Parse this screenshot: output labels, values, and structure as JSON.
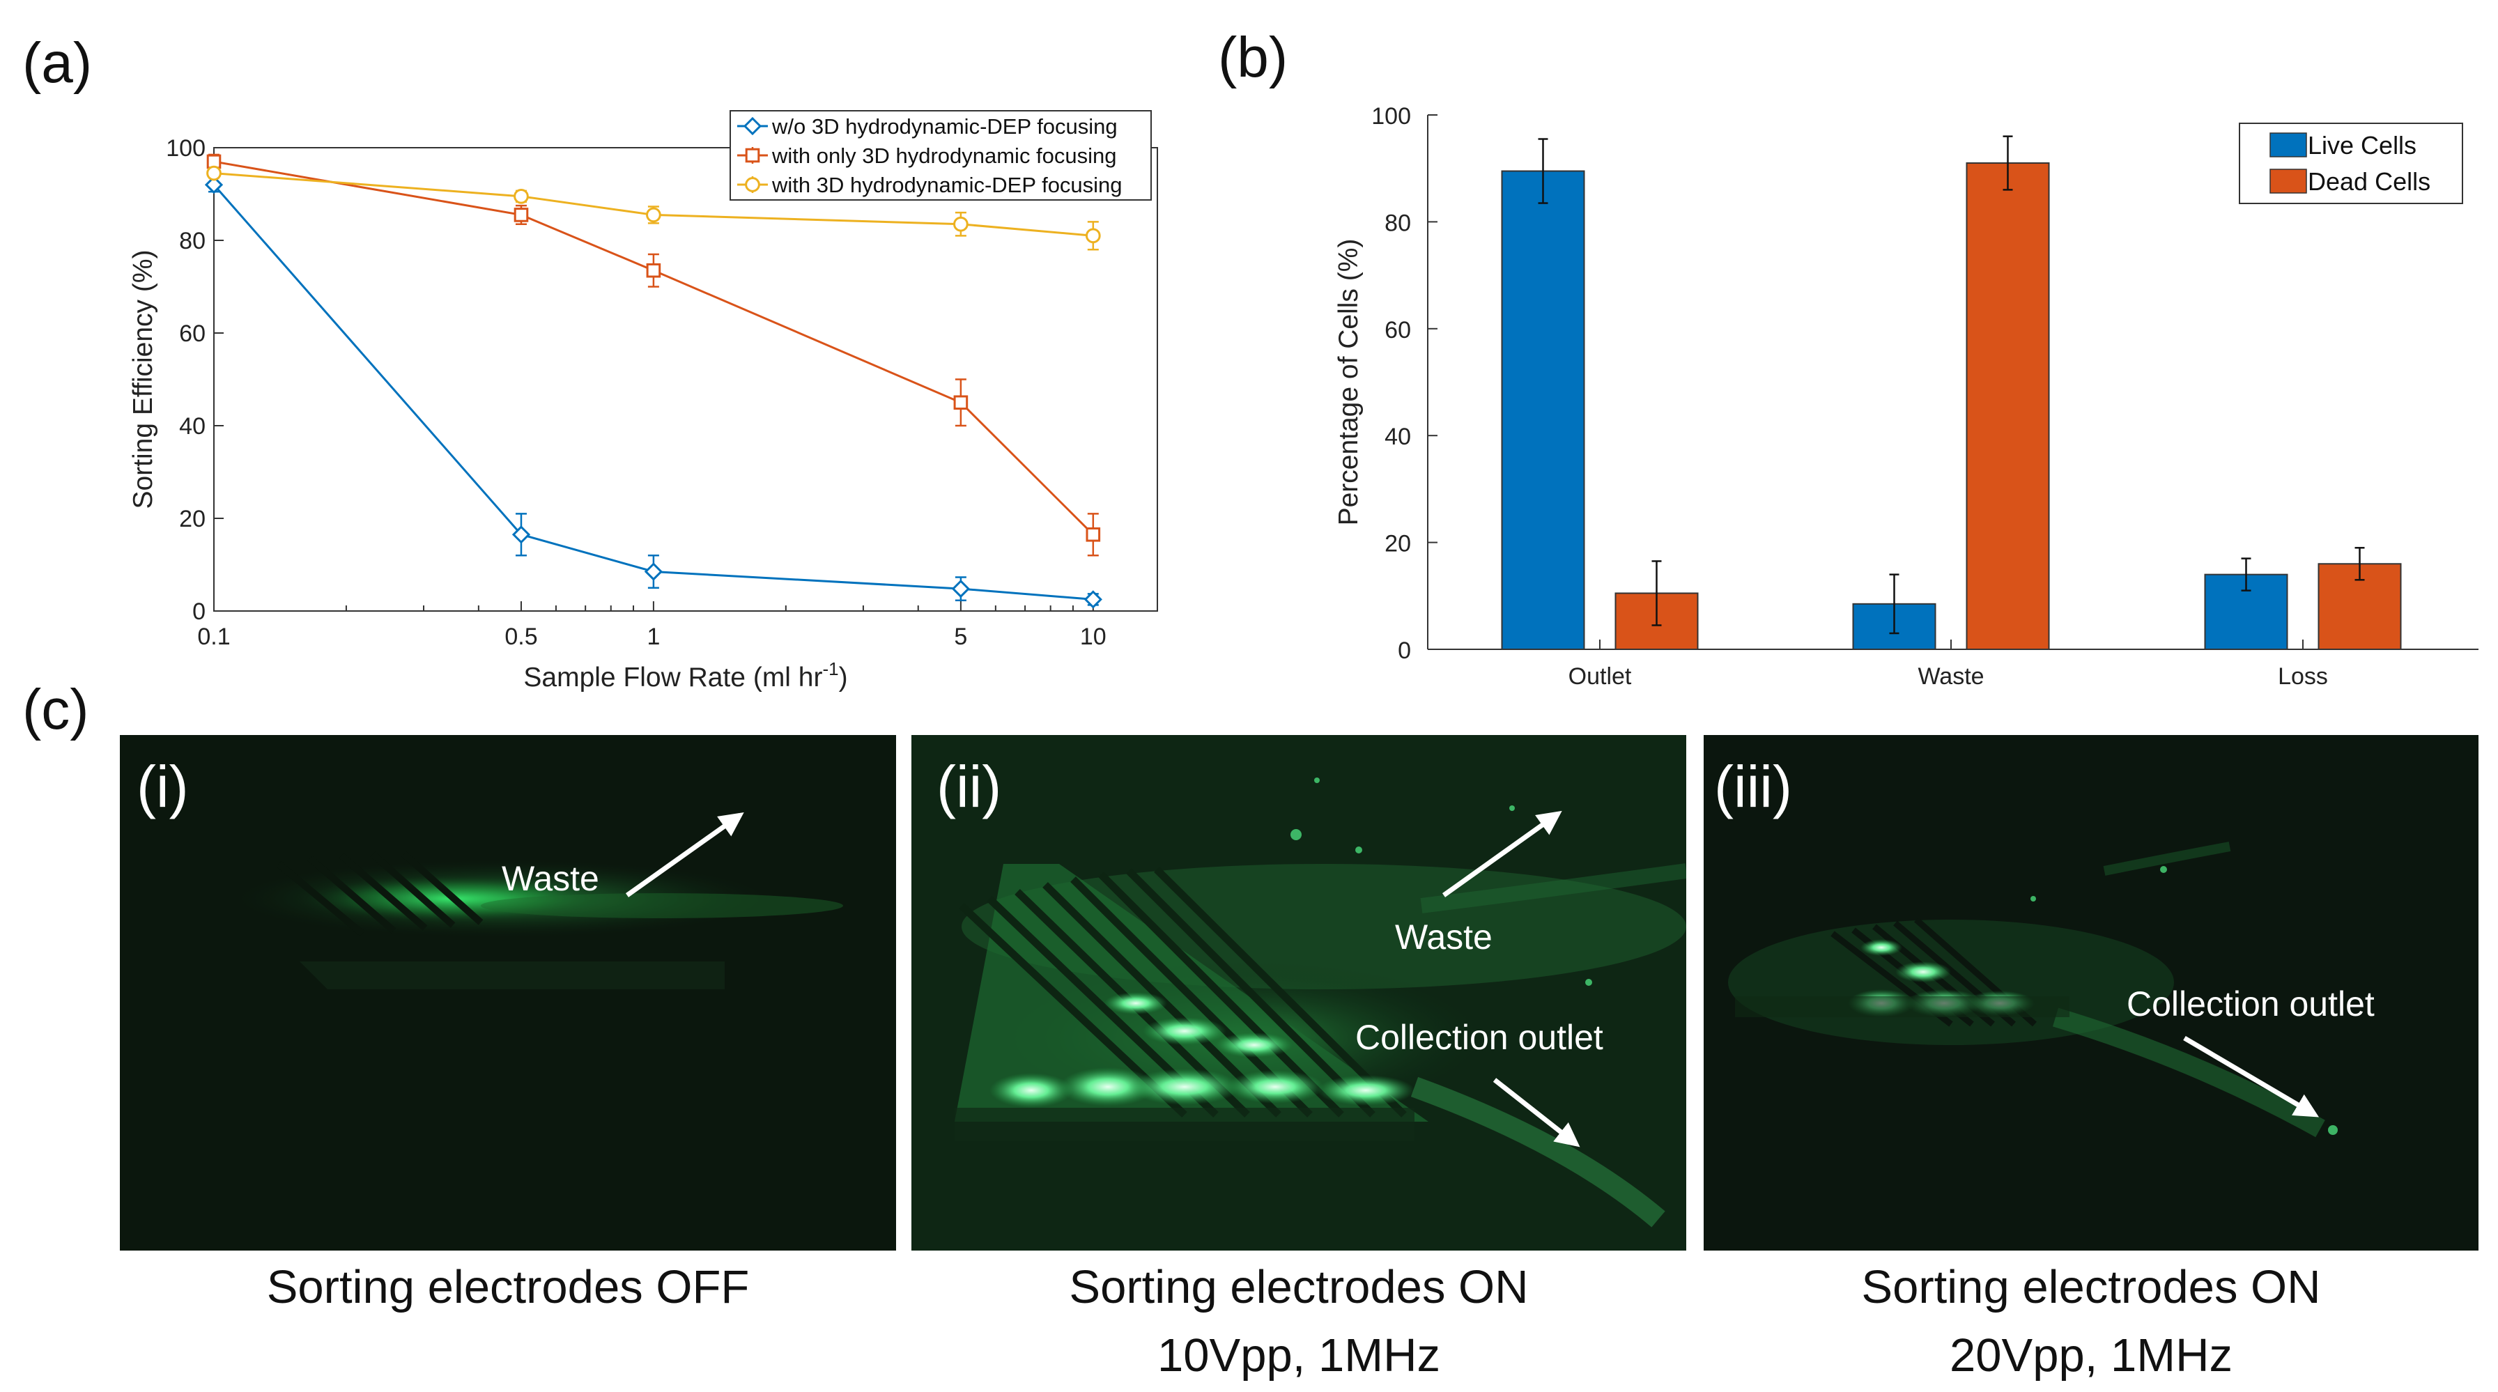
{
  "panels": {
    "a": {
      "label": "(a)"
    },
    "b": {
      "label": "(b)"
    },
    "c": {
      "label": "(c)"
    }
  },
  "chart_data": [
    {
      "id": "a",
      "type": "line",
      "xscale": "log",
      "xlabel": "Sample Flow Rate (ml hr",
      "xlabel_sup": "-1",
      "xlabel_end": ")",
      "ylabel": "Sorting Efficiency (%)",
      "xlim": [
        0.1,
        14
      ],
      "ylim": [
        0,
        100
      ],
      "x": [
        0.1,
        0.5,
        1,
        5,
        10
      ],
      "xticks": [
        "0.1",
        "0.5",
        "1",
        "5",
        "10"
      ],
      "yticks": [
        "0",
        "20",
        "40",
        "60",
        "80",
        "100"
      ],
      "legend_position": "top-right",
      "series": [
        {
          "name": "w/o 3D hydrodynamic-DEP focusing",
          "color": "#0072BD",
          "marker": "diamond",
          "values": [
            92,
            16.5,
            8.5,
            4.8,
            2.5
          ],
          "errors": [
            1.5,
            4.5,
            3.5,
            2.5,
            1.2
          ]
        },
        {
          "name": "with only 3D hydrodynamic focusing",
          "color": "#D95319",
          "marker": "square",
          "values": [
            97,
            85.5,
            73.5,
            45,
            16.5
          ],
          "errors": [
            1.5,
            2,
            3.5,
            5,
            4.5
          ]
        },
        {
          "name": "with 3D hydrodynamic-DEP focusing",
          "color": "#EDB120",
          "marker": "circle",
          "values": [
            94.5,
            89.5,
            85.5,
            83.5,
            81
          ],
          "errors": [
            1,
            1.2,
            1.8,
            2.5,
            3
          ]
        }
      ]
    },
    {
      "id": "b",
      "type": "bar",
      "ylabel": "Percentage of Cells (%)",
      "ylim": [
        0,
        100
      ],
      "categories": [
        "Outlet",
        "Waste",
        "Loss"
      ],
      "yticks": [
        "0",
        "20",
        "40",
        "60",
        "80",
        "100"
      ],
      "legend_position": "top-right",
      "series": [
        {
          "name": "Live Cells",
          "color": "#0072BD",
          "values": [
            89.5,
            8.5,
            14
          ],
          "errors": [
            6,
            5.5,
            3
          ]
        },
        {
          "name": "Dead Cells",
          "color": "#D95319",
          "values": [
            10.5,
            91,
            16
          ],
          "errors": [
            6,
            5,
            3
          ]
        }
      ]
    }
  ],
  "images": [
    {
      "label": "(i)",
      "annotations": [
        "Waste"
      ],
      "caption": [
        "Sorting electrodes OFF"
      ]
    },
    {
      "label": "(ii)",
      "annotations": [
        "Waste",
        "Collection outlet"
      ],
      "caption": [
        "Sorting electrodes ON",
        "10Vpp, 1MHz"
      ]
    },
    {
      "label": "(iii)",
      "annotations": [
        "Collection outlet"
      ],
      "caption": [
        "Sorting electrodes ON",
        "20Vpp, 1MHz"
      ]
    }
  ]
}
